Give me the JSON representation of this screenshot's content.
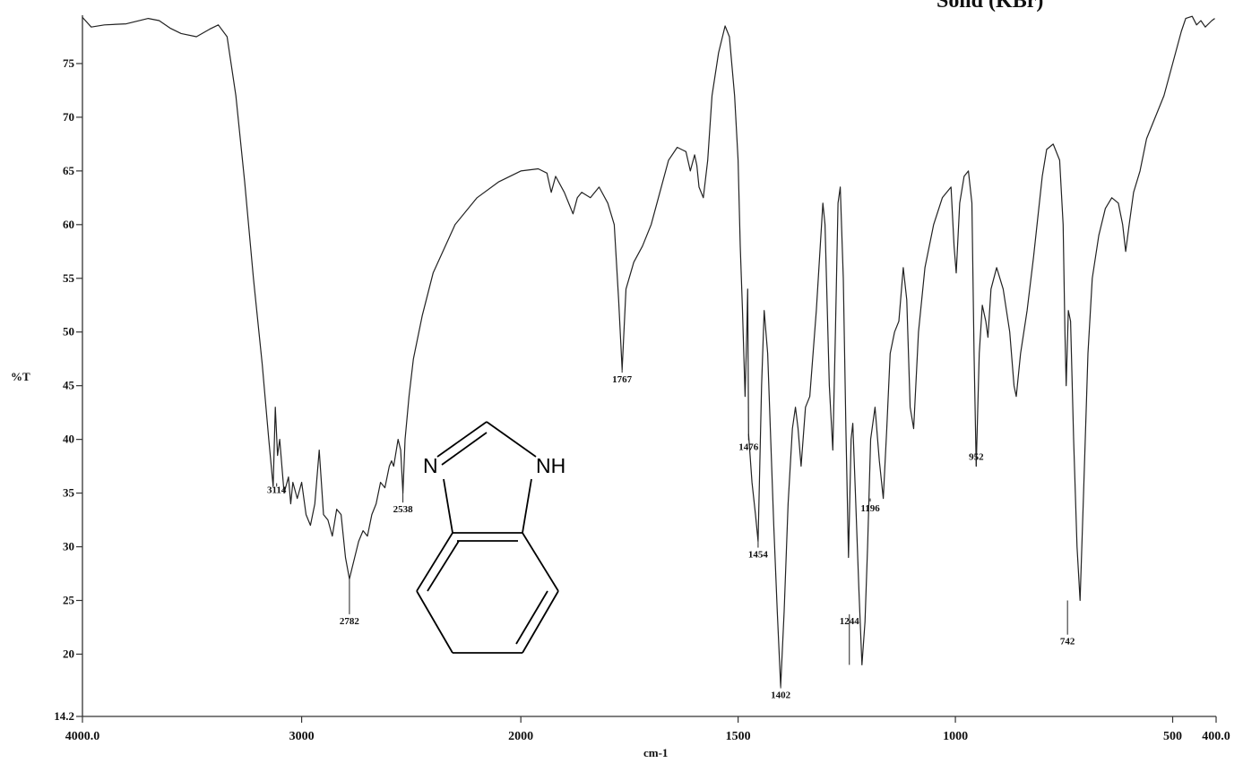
{
  "title": "Solid (KBr)",
  "chart_data": {
    "type": "line",
    "title": "Solid (KBr)",
    "xlabel": "cm-1",
    "ylabel": "%T",
    "xlim": [
      4000.0,
      400.0
    ],
    "ylim": [
      14.2,
      79.5
    ],
    "x_reversed": true,
    "grid": false,
    "x_ticks": [
      4000,
      3000,
      2000,
      1500,
      1000,
      500,
      400
    ],
    "x_tick_labels": [
      "4000.0",
      "3000",
      "2000",
      "1500",
      "1000",
      "500",
      "400.0"
    ],
    "y_ticks": [
      14.2,
      20,
      25,
      30,
      35,
      40,
      45,
      50,
      55,
      60,
      65,
      70,
      75
    ],
    "y_tick_labels": [
      "14.2",
      "20",
      "25",
      "30",
      "35",
      "40",
      "45",
      "50",
      "55",
      "60",
      "65",
      "70",
      "75"
    ],
    "series": [
      {
        "color": "#222222",
        "points": [
          [
            4000,
            79.3
          ],
          [
            3960,
            78.4
          ],
          [
            3900,
            78.6
          ],
          [
            3800,
            78.7
          ],
          [
            3700,
            79.2
          ],
          [
            3650,
            79.0
          ],
          [
            3600,
            78.3
          ],
          [
            3550,
            77.8
          ],
          [
            3480,
            77.5
          ],
          [
            3420,
            78.2
          ],
          [
            3380,
            78.6
          ],
          [
            3340,
            77.5
          ],
          [
            3300,
            72.0
          ],
          [
            3260,
            64.0
          ],
          [
            3220,
            55.0
          ],
          [
            3180,
            47.0
          ],
          [
            3150,
            40.0
          ],
          [
            3130,
            35.6
          ],
          [
            3120,
            43.0
          ],
          [
            3110,
            38.5
          ],
          [
            3100,
            40.0
          ],
          [
            3080,
            35.0
          ],
          [
            3060,
            36.5
          ],
          [
            3050,
            34.0
          ],
          [
            3040,
            36.0
          ],
          [
            3020,
            34.5
          ],
          [
            3000,
            36.0
          ],
          [
            2980,
            33.0
          ],
          [
            2960,
            32.0
          ],
          [
            2940,
            34.0
          ],
          [
            2920,
            39.0
          ],
          [
            2900,
            33.0
          ],
          [
            2880,
            32.5
          ],
          [
            2860,
            31.0
          ],
          [
            2840,
            33.5
          ],
          [
            2820,
            33.0
          ],
          [
            2800,
            29.0
          ],
          [
            2782,
            27.0
          ],
          [
            2770,
            28.0
          ],
          [
            2740,
            30.5
          ],
          [
            2720,
            31.5
          ],
          [
            2700,
            31.0
          ],
          [
            2680,
            33.0
          ],
          [
            2660,
            34.0
          ],
          [
            2640,
            36.0
          ],
          [
            2620,
            35.5
          ],
          [
            2600,
            37.5
          ],
          [
            2590,
            38.0
          ],
          [
            2580,
            37.5
          ],
          [
            2560,
            40.0
          ],
          [
            2548,
            39.0
          ],
          [
            2538,
            35.0
          ],
          [
            2528,
            40.0
          ],
          [
            2510,
            44.0
          ],
          [
            2490,
            47.5
          ],
          [
            2450,
            51.5
          ],
          [
            2400,
            55.5
          ],
          [
            2300,
            60.0
          ],
          [
            2200,
            62.5
          ],
          [
            2100,
            64.0
          ],
          [
            2000,
            65.0
          ],
          [
            1960,
            65.2
          ],
          [
            1940,
            64.8
          ],
          [
            1930,
            63.0
          ],
          [
            1920,
            64.5
          ],
          [
            1900,
            63.0
          ],
          [
            1880,
            61.0
          ],
          [
            1870,
            62.5
          ],
          [
            1860,
            63.0
          ],
          [
            1840,
            62.5
          ],
          [
            1820,
            63.5
          ],
          [
            1800,
            62.0
          ],
          [
            1785,
            60.0
          ],
          [
            1775,
            53.0
          ],
          [
            1767,
            46.5
          ],
          [
            1758,
            54.0
          ],
          [
            1740,
            56.5
          ],
          [
            1720,
            58.0
          ],
          [
            1700,
            60.0
          ],
          [
            1680,
            63.0
          ],
          [
            1660,
            66.0
          ],
          [
            1640,
            67.2
          ],
          [
            1620,
            66.8
          ],
          [
            1610,
            65.0
          ],
          [
            1600,
            66.5
          ],
          [
            1595,
            65.5
          ],
          [
            1590,
            63.5
          ],
          [
            1580,
            62.5
          ],
          [
            1570,
            66.0
          ],
          [
            1560,
            72.0
          ],
          [
            1545,
            76.0
          ],
          [
            1530,
            78.5
          ],
          [
            1520,
            77.5
          ],
          [
            1508,
            72.0
          ],
          [
            1500,
            66.0
          ],
          [
            1495,
            58.0
          ],
          [
            1490,
            52.0
          ],
          [
            1484,
            44.0
          ],
          [
            1480,
            50.0
          ],
          [
            1478,
            54.0
          ],
          [
            1476,
            40.5
          ],
          [
            1468,
            36.0
          ],
          [
            1460,
            33.0
          ],
          [
            1454,
            30.5
          ],
          [
            1446,
            45.0
          ],
          [
            1440,
            52.0
          ],
          [
            1432,
            48.0
          ],
          [
            1425,
            40.0
          ],
          [
            1418,
            32.0
          ],
          [
            1410,
            24.0
          ],
          [
            1402,
            17.0
          ],
          [
            1394,
            24.0
          ],
          [
            1385,
            34.0
          ],
          [
            1375,
            41.0
          ],
          [
            1368,
            43.0
          ],
          [
            1362,
            41.0
          ],
          [
            1355,
            37.5
          ],
          [
            1345,
            43.0
          ],
          [
            1335,
            44.0
          ],
          [
            1320,
            52.0
          ],
          [
            1305,
            62.0
          ],
          [
            1300,
            60.0
          ],
          [
            1290,
            45.0
          ],
          [
            1282,
            39.0
          ],
          [
            1276,
            50.0
          ],
          [
            1270,
            62.0
          ],
          [
            1265,
            63.5
          ],
          [
            1258,
            55.0
          ],
          [
            1252,
            41.0
          ],
          [
            1246,
            29.0
          ],
          [
            1240,
            40.0
          ],
          [
            1236,
            41.5
          ],
          [
            1230,
            35.0
          ],
          [
            1222,
            26.0
          ],
          [
            1215,
            19.0
          ],
          [
            1208,
            23.0
          ],
          [
            1202,
            30.0
          ],
          [
            1195,
            40.0
          ],
          [
            1185,
            43.0
          ],
          [
            1175,
            38.0
          ],
          [
            1166,
            34.5
          ],
          [
            1158,
            41.0
          ],
          [
            1150,
            48.0
          ],
          [
            1140,
            50.0
          ],
          [
            1130,
            51.0
          ],
          [
            1120,
            56.0
          ],
          [
            1112,
            53.0
          ],
          [
            1104,
            43.0
          ],
          [
            1096,
            41.0
          ],
          [
            1085,
            50.0
          ],
          [
            1070,
            56.0
          ],
          [
            1050,
            60.0
          ],
          [
            1030,
            62.5
          ],
          [
            1010,
            63.5
          ],
          [
            1003,
            58.0
          ],
          [
            998,
            55.5
          ],
          [
            990,
            62.0
          ],
          [
            980,
            64.5
          ],
          [
            970,
            65.0
          ],
          [
            962,
            62.0
          ],
          [
            957,
            48.0
          ],
          [
            952,
            37.5
          ],
          [
            945,
            48.0
          ],
          [
            938,
            52.5
          ],
          [
            930,
            51.0
          ],
          [
            925,
            49.5
          ],
          [
            918,
            54.0
          ],
          [
            905,
            56.0
          ],
          [
            890,
            54.0
          ],
          [
            875,
            50.0
          ],
          [
            865,
            45.0
          ],
          [
            860,
            44.0
          ],
          [
            850,
            48.0
          ],
          [
            835,
            52.0
          ],
          [
            820,
            57.0
          ],
          [
            800,
            64.5
          ],
          [
            790,
            67.0
          ],
          [
            775,
            67.5
          ],
          [
            760,
            66.0
          ],
          [
            752,
            60.0
          ],
          [
            748,
            50.0
          ],
          [
            745,
            45.0
          ],
          [
            740,
            52.0
          ],
          [
            735,
            51.0
          ],
          [
            728,
            40.0
          ],
          [
            720,
            30.0
          ],
          [
            713,
            25.0
          ],
          [
            705,
            35.0
          ],
          [
            695,
            48.0
          ],
          [
            685,
            55.0
          ],
          [
            670,
            59.0
          ],
          [
            655,
            61.5
          ],
          [
            640,
            62.5
          ],
          [
            625,
            62.0
          ],
          [
            615,
            60.0
          ],
          [
            608,
            57.5
          ],
          [
            600,
            60.0
          ],
          [
            590,
            63.0
          ],
          [
            575,
            65.0
          ],
          [
            560,
            68.0
          ],
          [
            540,
            70.0
          ],
          [
            520,
            72.0
          ],
          [
            500,
            75.0
          ],
          [
            480,
            78.0
          ],
          [
            470,
            79.2
          ],
          [
            455,
            79.4
          ],
          [
            445,
            78.6
          ],
          [
            435,
            79.0
          ],
          [
            425,
            78.4
          ],
          [
            410,
            79.0
          ],
          [
            403,
            79.2
          ]
        ]
      }
    ],
    "peak_labels": [
      {
        "x": 3114,
        "y": 35.6,
        "label": "3114",
        "label_y": 35.0
      },
      {
        "x": 2782,
        "y": 27.0,
        "label": "2782",
        "label_y": 22.8
      },
      {
        "x": 2538,
        "y": 35.0,
        "label": "2538",
        "label_y": 33.2
      },
      {
        "x": 1767,
        "y": 46.5,
        "label": "1767",
        "label_y": 45.3
      },
      {
        "x": 1476,
        "y": 40.5,
        "label": "1476",
        "label_y": 39.0
      },
      {
        "x": 1454,
        "y": 30.5,
        "label": "1454",
        "label_y": 29.0
      },
      {
        "x": 1402,
        "y": 17.0,
        "label": "1402",
        "label_y": 15.9
      },
      {
        "x": 1244,
        "y": 19.0,
        "label": "1244",
        "label_y": 22.8
      },
      {
        "x": 1196,
        "y": 34.5,
        "label": "1196",
        "label_y": 33.3
      },
      {
        "x": 952,
        "y": 37.5,
        "label": "952",
        "label_y": 38.1
      },
      {
        "x": 742,
        "y": 25.0,
        "label": "742",
        "label_y": 20.9
      }
    ]
  },
  "structure": {
    "atom_n": "N",
    "atom_nh": "NH"
  }
}
